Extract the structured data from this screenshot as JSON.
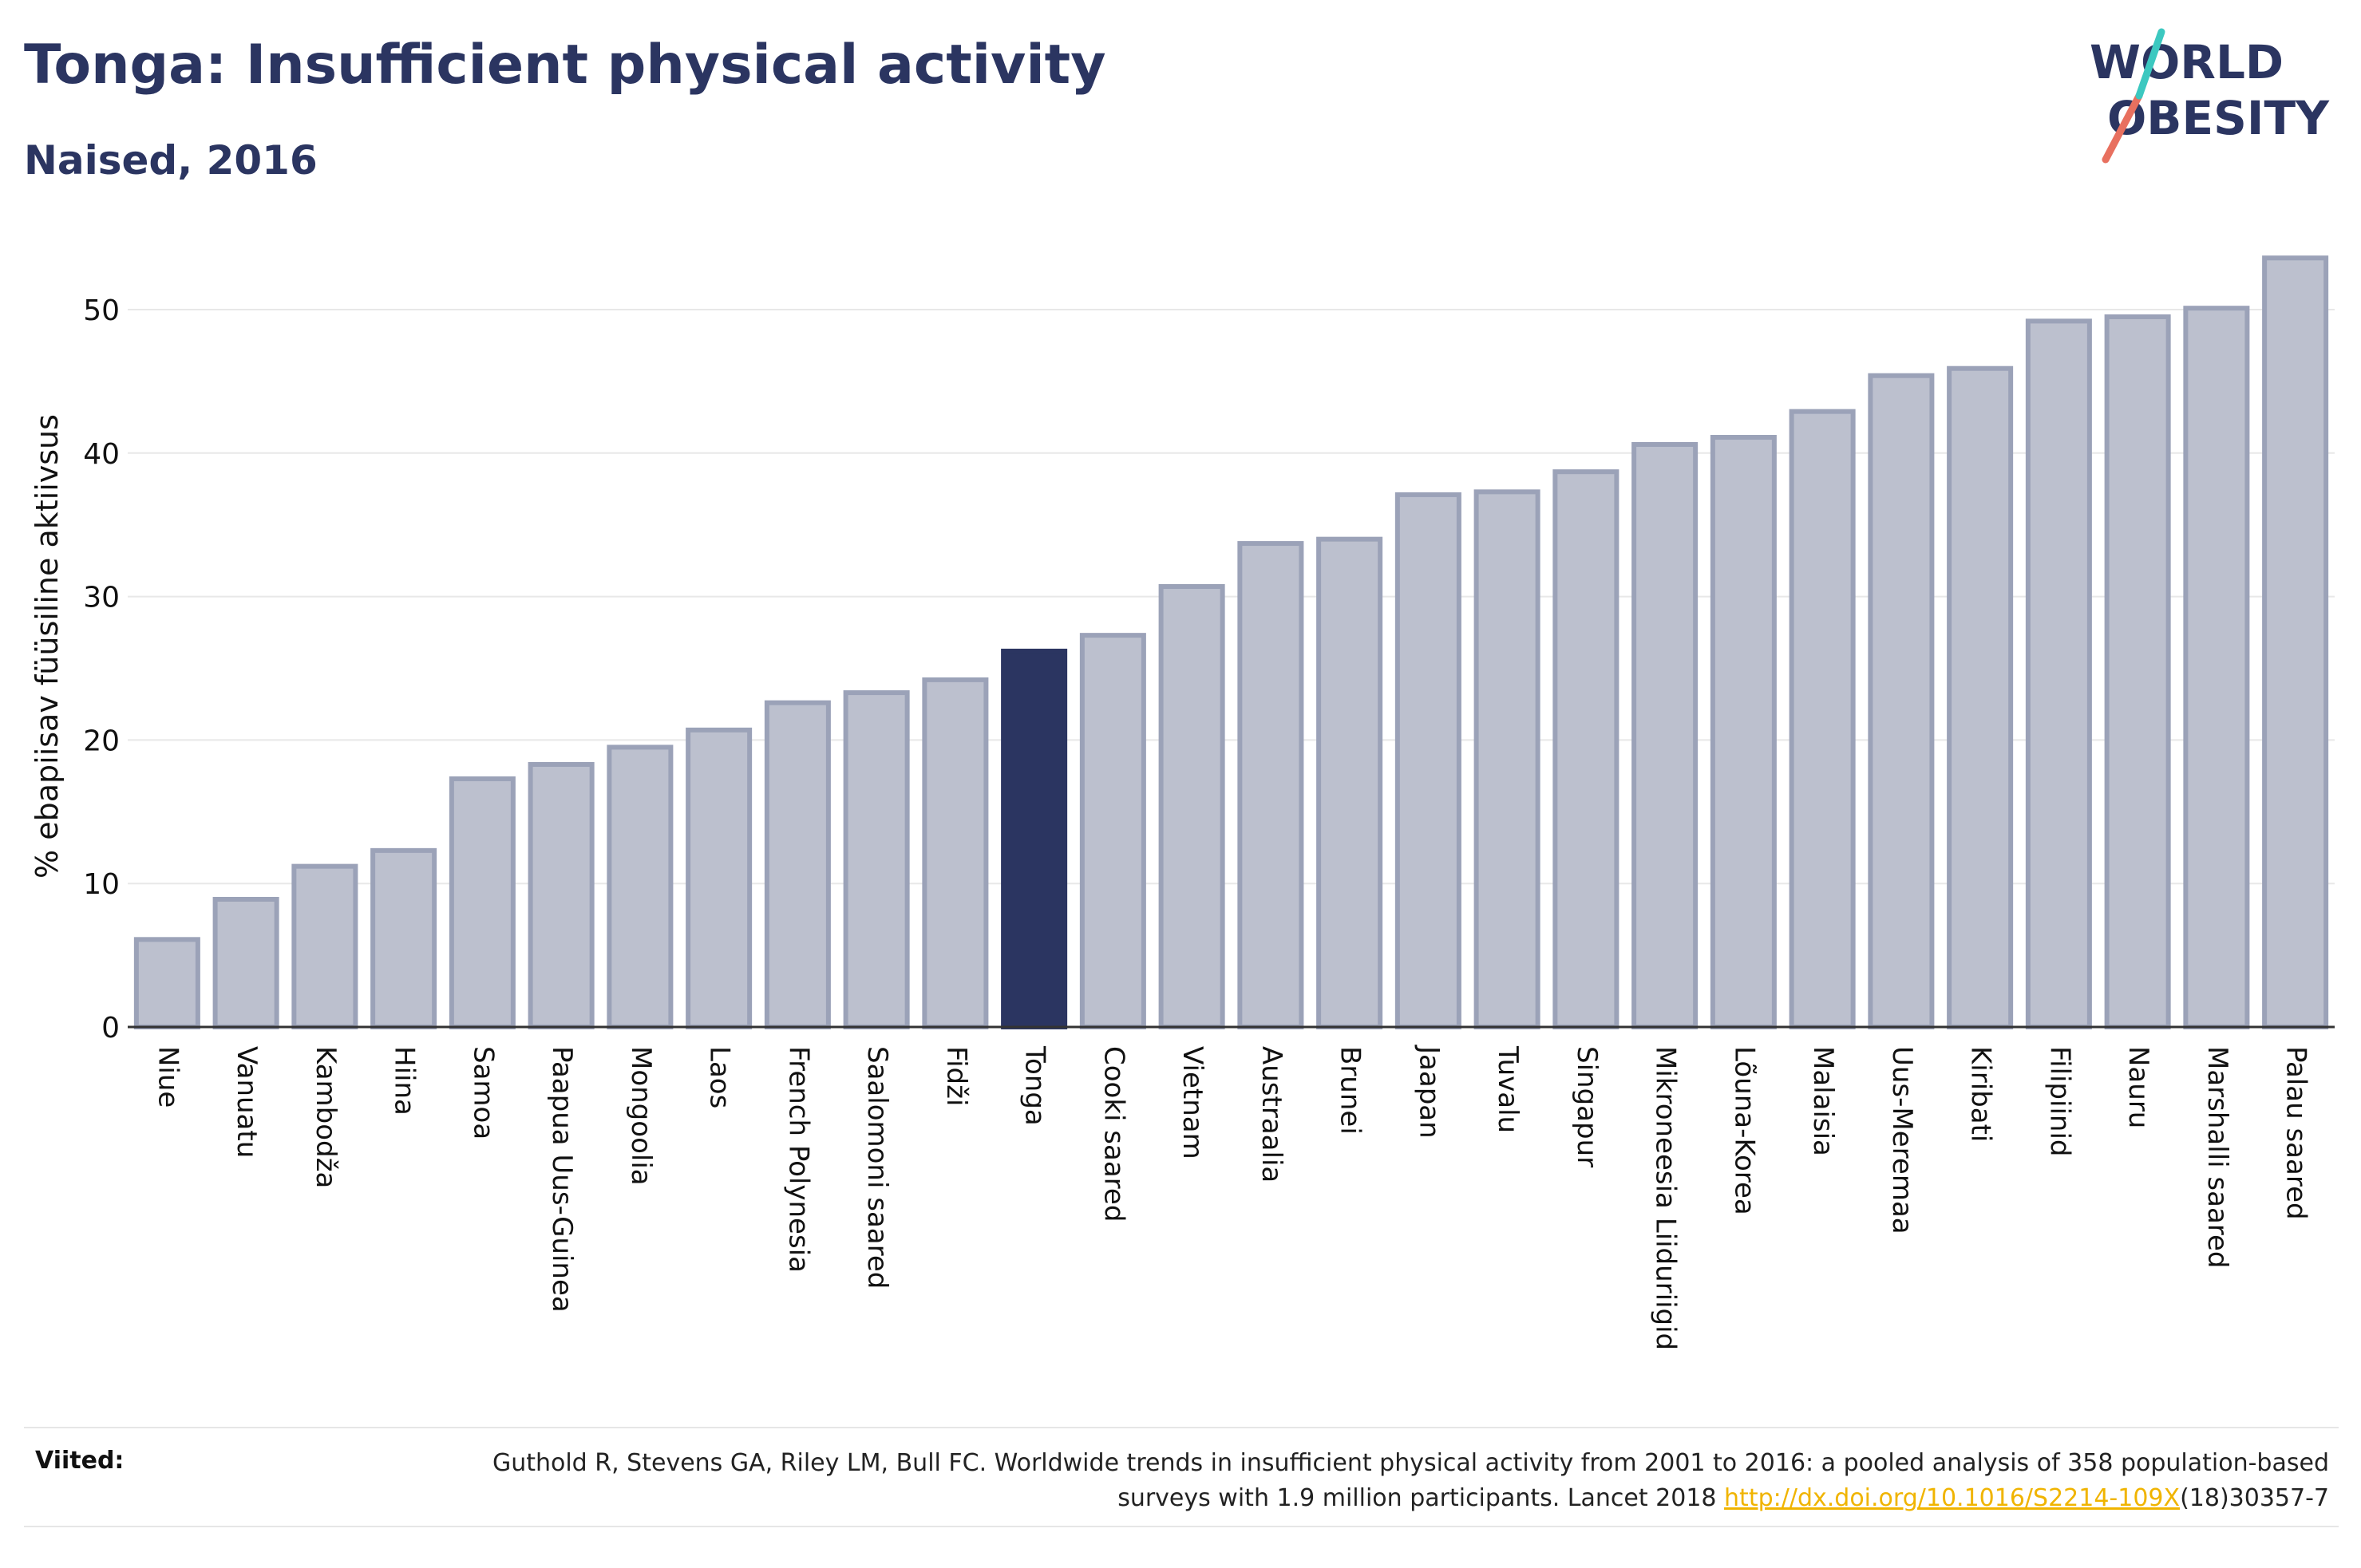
{
  "title": "Tonga: Insufficient physical activity",
  "subtitle": "Naised, 2016",
  "logo": {
    "line1": "WORLD",
    "line2": "OBESITY"
  },
  "references": {
    "label": "Viited:",
    "text_before": "Guthold R, Stevens GA, Riley LM, Bull FC. Worldwide trends in insufficient physical activity from 2001 to 2016: a pooled analysis of 358 population-based surveys with 1.9 million participants. Lancet 2018 ",
    "link_text": "http://dx.doi.org/10.1016/S2214-109X",
    "text_after": "(18)30357-7"
  },
  "colors": {
    "highlight": "#2b3561",
    "bar": "#bcc0ce",
    "bar_border": "#9ba2b8",
    "accent": "#e8705f",
    "teal": "#3cc8c0"
  },
  "chart_data": {
    "type": "bar",
    "ylabel": "% ebapiisav füüsiline aktiivsus",
    "ylim": [
      0,
      55
    ],
    "yticks": [
      0,
      10,
      20,
      30,
      40,
      50
    ],
    "highlight": "Tonga",
    "grid": true,
    "categories": [
      "Niue",
      "Vanuatu",
      "Kambodža",
      "Hiina",
      "Samoa",
      "Paapua Uus-Guinea",
      "Mongoolia",
      "Laos",
      "French Polynesia",
      "Saalomoni saared",
      "Fidži",
      "Tonga",
      "Cooki saared",
      "Vietnam",
      "Austraalia",
      "Brunei",
      "Jaapan",
      "Tuvalu",
      "Singapur",
      "Mikroneesia Liiduriigid",
      "Lõuna-Korea",
      "Malaisia",
      "Uus-Meremaa",
      "Kiribati",
      "Filipiinid",
      "Nauru",
      "Marshalli saared",
      "Palau saared"
    ],
    "values": [
      6.1,
      8.9,
      11.2,
      12.3,
      17.3,
      18.3,
      19.5,
      20.7,
      22.6,
      23.3,
      24.2,
      26.2,
      27.3,
      30.7,
      33.7,
      34.0,
      37.1,
      37.3,
      38.7,
      40.6,
      41.1,
      42.9,
      45.4,
      45.9,
      49.2,
      49.5,
      50.1,
      53.6
    ]
  }
}
